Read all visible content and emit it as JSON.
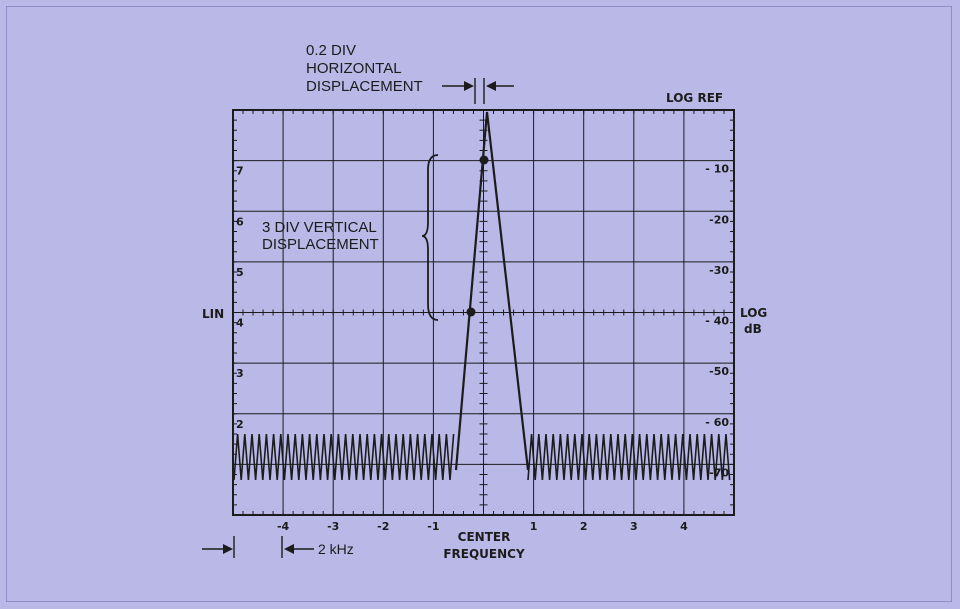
{
  "annotations": {
    "h_disp_line1": "0.2 DIV",
    "h_disp_line2": "HORIZONTAL",
    "h_disp_line3": "DISPLACEMENT",
    "v_disp_line1": "3 DIV VERTICAL",
    "v_disp_line2": "DISPLACEMENT",
    "log_ref": "LOG REF",
    "lin": "LIN",
    "log": "LOG",
    "db": "dB",
    "center_line1": "CENTER",
    "center_line2": "FREQUENCY",
    "khz": "2 kHz"
  },
  "lin_scale": [
    "7",
    "6",
    "5",
    "4",
    "3",
    "2"
  ],
  "log_scale": [
    "- 10",
    "-20",
    "-30",
    "- 40",
    "-50",
    "- 60",
    "-70"
  ],
  "freq_ticks": [
    "-4",
    "-3",
    "-2",
    "-1",
    "1",
    "2",
    "3",
    "4"
  ],
  "colors": {
    "background": "#b9b8e6",
    "ink": "#1c1c1c"
  }
}
